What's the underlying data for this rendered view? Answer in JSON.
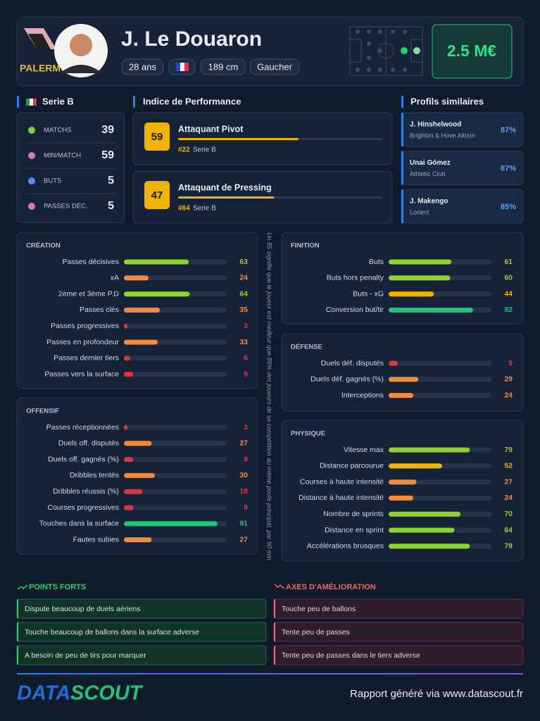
{
  "header": {
    "club": "PALERMO",
    "name": "J. Le Douaron",
    "chips": [
      "28 ans",
      "189 cm",
      "Gaucher"
    ],
    "market_value": "2.5 M€"
  },
  "league": {
    "title": "Serie B",
    "stats": [
      {
        "label": "MATCHS",
        "value": 39
      },
      {
        "label": "MIN/MATCH",
        "value": 59
      },
      {
        "label": "BUTS",
        "value": 5
      },
      {
        "label": "PASSES DÉC.",
        "value": 5
      }
    ]
  },
  "performance": {
    "title": "Indice de Performance",
    "items": [
      {
        "score": 59,
        "label": "Attaquant Pivot",
        "rank": "#22",
        "league": "Serie B"
      },
      {
        "score": 47,
        "label": "Attaquant de Pressing",
        "rank": "#64",
        "league": "Serie B"
      }
    ]
  },
  "similar": {
    "title": "Profils similaires",
    "items": [
      {
        "name": "J. Hinshelwood",
        "club": "Brighton & Hove Albion",
        "match": "87%"
      },
      {
        "name": "Unai Gómez",
        "club": "Athletic Club",
        "match": "87%"
      },
      {
        "name": "J. Makengo",
        "club": "Lorient",
        "match": "85%"
      }
    ]
  },
  "metrics": [
    {
      "title": "CRÉATION",
      "rows": [
        {
          "label": "Passes décisives",
          "value": 63
        },
        {
          "label": "xA",
          "value": 24
        },
        {
          "label": "2ème et 3ème P.D",
          "value": 64
        },
        {
          "label": "Passes clés",
          "value": 35
        },
        {
          "label": "Passes progressives",
          "value": 3
        },
        {
          "label": "Passes en profondeur",
          "value": 33
        },
        {
          "label": "Passes dernier tiers",
          "value": 6
        },
        {
          "label": "Passes vers la surface",
          "value": 9
        }
      ]
    },
    {
      "title": "OFFENSIF",
      "rows": [
        {
          "label": "Passes réceptionnées",
          "value": 3
        },
        {
          "label": "Duels off. disputés",
          "value": 27
        },
        {
          "label": "Duels off. gagnés (%)",
          "value": 9
        },
        {
          "label": "Dribbles tentés",
          "value": 30
        },
        {
          "label": "Dribbles réussis (%)",
          "value": 18
        },
        {
          "label": "Courses progressives",
          "value": 9
        },
        {
          "label": "Touches dans la surface",
          "value": 91
        },
        {
          "label": "Fautes subies",
          "value": 27
        }
      ]
    },
    {
      "title": "FINITION",
      "rows": [
        {
          "label": "Buts",
          "value": 61
        },
        {
          "label": "Buts hors penalty",
          "value": 60
        },
        {
          "label": "Buts - xG",
          "value": 44
        },
        {
          "label": "Conversion but/tir",
          "value": 82
        }
      ]
    },
    {
      "title": "DÉFENSE",
      "rows": [
        {
          "label": "Duels déf. disputés",
          "value": 9
        },
        {
          "label": "Duels déf. gagnés (%)",
          "value": 29
        },
        {
          "label": "Interceptions",
          "value": 24
        }
      ]
    },
    {
      "title": "PHYSIQUE",
      "rows": [
        {
          "label": "Vitesse max",
          "value": 79
        },
        {
          "label": "Distance parcourue",
          "value": 52
        },
        {
          "label": "Courses à haute intensité",
          "value": 27
        },
        {
          "label": "Distance à haute intensité",
          "value": 24
        },
        {
          "label": "Nombre de sprints",
          "value": 70
        },
        {
          "label": "Distance en sprint",
          "value": 64
        },
        {
          "label": "Accélérations brusques",
          "value": 79
        }
      ]
    }
  ],
  "note": "Un 85 signifie que le joueur est meilleur que 85% des joueurs de sa compétition au même poste principal, par 90 min",
  "strengths": {
    "title": "POINTS FORTS",
    "items": [
      "Dispute beaucoup de duels aériens",
      "Touche beaucoup de ballons dans la surface adverse",
      "A besoin de peu de tirs pour marquer"
    ]
  },
  "improvements": {
    "title": "AXES D'AMÉLIORATION",
    "items": [
      "Touche peu de ballons",
      "Tente peu de passes",
      "Tente peu de passes dans le tiers adverse"
    ]
  },
  "footer": {
    "logo_left": "DATA",
    "logo_right": "SCOUT",
    "note": "Rapport généré via www.datascout.fr"
  }
}
